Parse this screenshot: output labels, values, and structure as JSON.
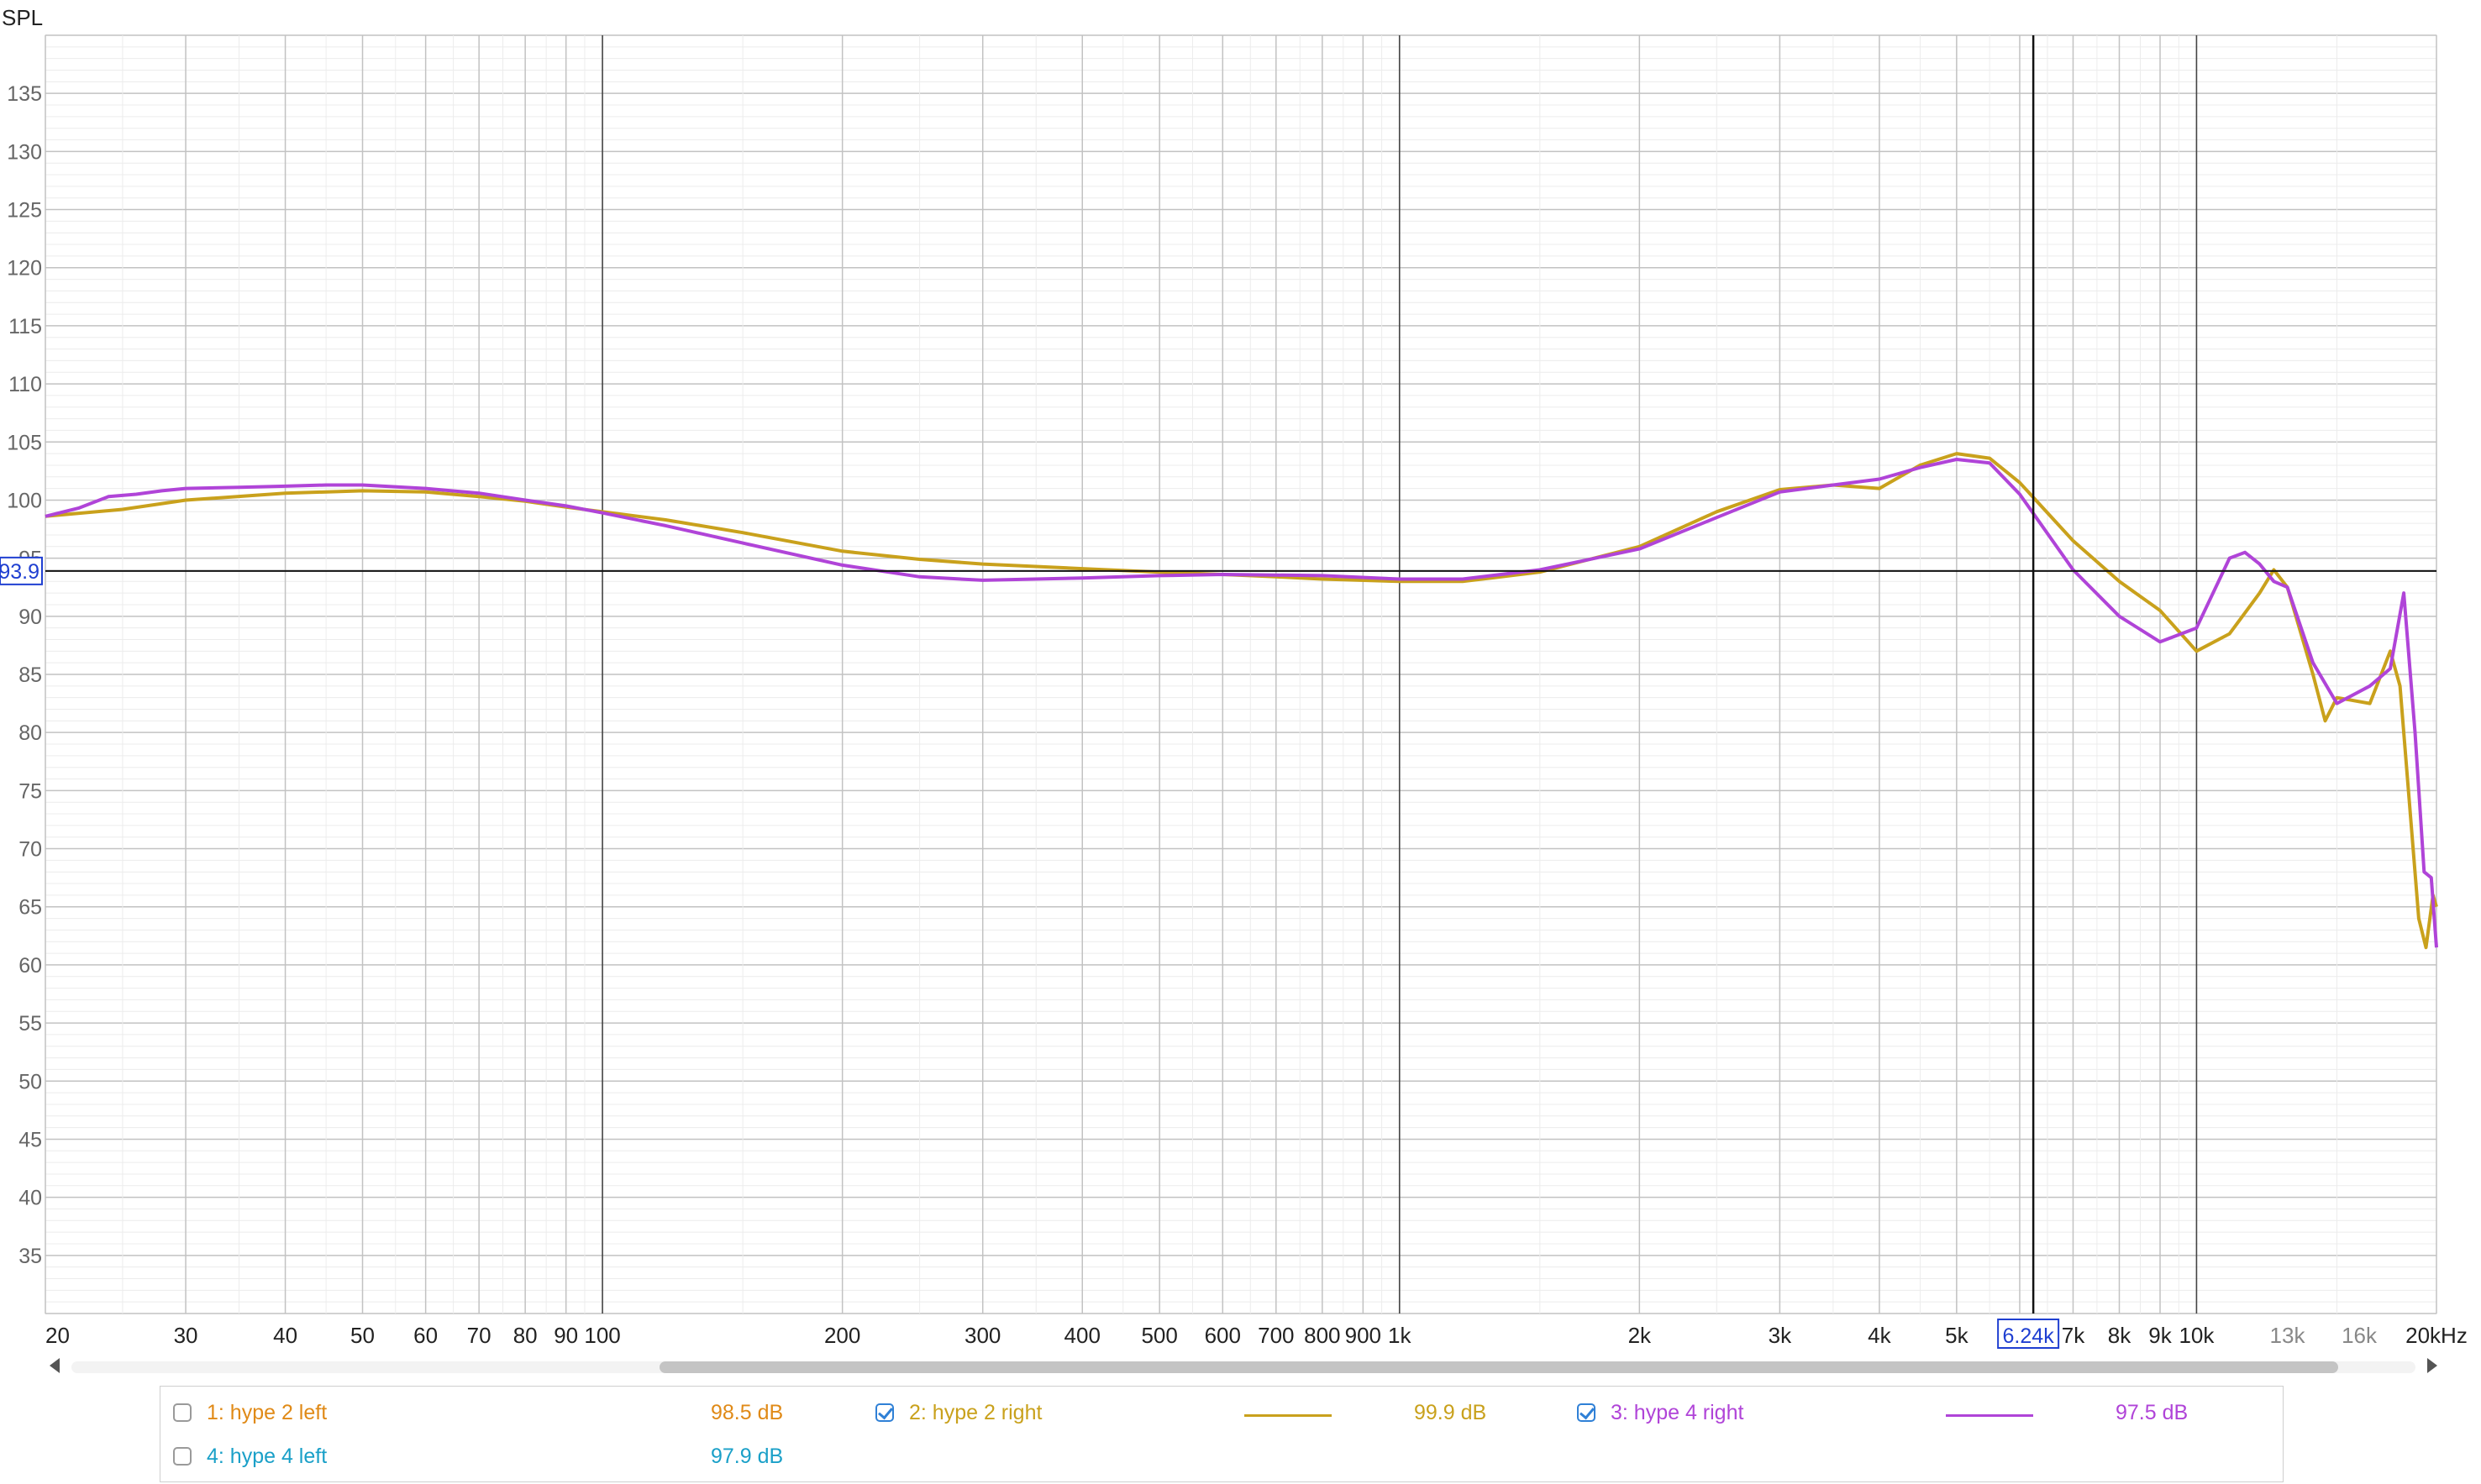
{
  "chart_data": {
    "type": "line",
    "title": "",
    "ylabel": "SPL",
    "xlabel": "",
    "x_scale": "log",
    "xlim": [
      20,
      20000
    ],
    "ylim": [
      30,
      140
    ],
    "grid": true,
    "x_tick_labels": [
      {
        "f": 20,
        "label": "20"
      },
      {
        "f": 30,
        "label": "30"
      },
      {
        "f": 40,
        "label": "40"
      },
      {
        "f": 50,
        "label": "50"
      },
      {
        "f": 60,
        "label": "60"
      },
      {
        "f": 70,
        "label": "70"
      },
      {
        "f": 80,
        "label": "80"
      },
      {
        "f": 90,
        "label": "90"
      },
      {
        "f": 100,
        "label": "100"
      },
      {
        "f": 200,
        "label": "200"
      },
      {
        "f": 300,
        "label": "300"
      },
      {
        "f": 400,
        "label": "400"
      },
      {
        "f": 500,
        "label": "500"
      },
      {
        "f": 600,
        "label": "600"
      },
      {
        "f": 700,
        "label": "700"
      },
      {
        "f": 800,
        "label": "800"
      },
      {
        "f": 900,
        "label": "900"
      },
      {
        "f": 1000,
        "label": "1k"
      },
      {
        "f": 2000,
        "label": "2k"
      },
      {
        "f": 3000,
        "label": "3k"
      },
      {
        "f": 4000,
        "label": "4k"
      },
      {
        "f": 5000,
        "label": "5k"
      },
      {
        "f": 7000,
        "label": "7k"
      },
      {
        "f": 8000,
        "label": "8k"
      },
      {
        "f": 9000,
        "label": "9k"
      },
      {
        "f": 10000,
        "label": "10k"
      },
      {
        "f": 13000,
        "label": "13k",
        "faded": true
      },
      {
        "f": 16000,
        "label": "16k",
        "faded": true
      },
      {
        "f": 20000,
        "label": "20kHz"
      }
    ],
    "y_ticks": [
      35,
      40,
      45,
      50,
      55,
      60,
      65,
      70,
      75,
      80,
      85,
      90,
      95,
      100,
      105,
      110,
      115,
      120,
      125,
      130,
      135
    ],
    "cursor": {
      "freq_label": "6.24k",
      "freq": 6240,
      "level_label": "93.9",
      "level": 93.9
    },
    "series": [
      {
        "name": "2: hype 2 right",
        "color": "#c9a11c",
        "points": [
          [
            20,
            98.6
          ],
          [
            25,
            99.2
          ],
          [
            30,
            100.0
          ],
          [
            40,
            100.6
          ],
          [
            50,
            100.8
          ],
          [
            60,
            100.7
          ],
          [
            70,
            100.3
          ],
          [
            80,
            99.9
          ],
          [
            90,
            99.4
          ],
          [
            100,
            99.0
          ],
          [
            120,
            98.3
          ],
          [
            150,
            97.2
          ],
          [
            200,
            95.6
          ],
          [
            250,
            94.9
          ],
          [
            300,
            94.5
          ],
          [
            400,
            94.1
          ],
          [
            500,
            93.8
          ],
          [
            600,
            93.6
          ],
          [
            700,
            93.4
          ],
          [
            800,
            93.2
          ],
          [
            1000,
            93.0
          ],
          [
            1200,
            93.0
          ],
          [
            1500,
            93.8
          ],
          [
            2000,
            96.0
          ],
          [
            2500,
            99.0
          ],
          [
            3000,
            100.9
          ],
          [
            3500,
            101.3
          ],
          [
            4000,
            101.0
          ],
          [
            4500,
            103.0
          ],
          [
            5000,
            104.0
          ],
          [
            5500,
            103.6
          ],
          [
            6000,
            101.5
          ],
          [
            7000,
            96.5
          ],
          [
            8000,
            93.0
          ],
          [
            9000,
            90.5
          ],
          [
            10000,
            87.0
          ],
          [
            11000,
            88.5
          ],
          [
            12000,
            92.0
          ],
          [
            12500,
            94.0
          ],
          [
            13000,
            92.5
          ],
          [
            14000,
            85.0
          ],
          [
            14500,
            81.0
          ],
          [
            15000,
            83.0
          ],
          [
            16500,
            82.5
          ],
          [
            17500,
            87.0
          ],
          [
            18000,
            84.0
          ],
          [
            19000,
            64.0
          ],
          [
            19400,
            61.5
          ],
          [
            19800,
            66.0
          ],
          [
            20000,
            65.0
          ]
        ]
      },
      {
        "name": "3: hype 4 right",
        "color": "#b044d8",
        "points": [
          [
            20,
            98.6
          ],
          [
            22,
            99.3
          ],
          [
            24,
            100.3
          ],
          [
            26,
            100.5
          ],
          [
            28,
            100.8
          ],
          [
            30,
            101.0
          ],
          [
            35,
            101.1
          ],
          [
            40,
            101.2
          ],
          [
            45,
            101.3
          ],
          [
            50,
            101.3
          ],
          [
            60,
            101.0
          ],
          [
            70,
            100.6
          ],
          [
            80,
            100.0
          ],
          [
            90,
            99.5
          ],
          [
            100,
            98.9
          ],
          [
            120,
            97.8
          ],
          [
            150,
            96.3
          ],
          [
            200,
            94.4
          ],
          [
            250,
            93.4
          ],
          [
            300,
            93.1
          ],
          [
            400,
            93.3
          ],
          [
            500,
            93.5
          ],
          [
            600,
            93.6
          ],
          [
            800,
            93.5
          ],
          [
            1000,
            93.2
          ],
          [
            1200,
            93.2
          ],
          [
            1500,
            94.0
          ],
          [
            2000,
            95.8
          ],
          [
            2500,
            98.5
          ],
          [
            3000,
            100.7
          ],
          [
            3500,
            101.3
          ],
          [
            4000,
            101.8
          ],
          [
            4500,
            102.8
          ],
          [
            5000,
            103.5
          ],
          [
            5500,
            103.2
          ],
          [
            6000,
            100.5
          ],
          [
            7000,
            94.0
          ],
          [
            8000,
            90.0
          ],
          [
            9000,
            87.8
          ],
          [
            10000,
            89.0
          ],
          [
            11000,
            95.0
          ],
          [
            11500,
            95.5
          ],
          [
            12000,
            94.5
          ],
          [
            12500,
            93.0
          ],
          [
            13000,
            92.5
          ],
          [
            14000,
            86.0
          ],
          [
            15000,
            82.5
          ],
          [
            16500,
            84.0
          ],
          [
            17500,
            85.5
          ],
          [
            18200,
            92.0
          ],
          [
            18800,
            80.0
          ],
          [
            19300,
            68.0
          ],
          [
            19700,
            67.5
          ],
          [
            20000,
            61.5
          ]
        ]
      }
    ]
  },
  "legend": {
    "items": [
      {
        "label": "1: hype 2 left",
        "value": "98.5 dB",
        "color": "#e08a17",
        "checked": false
      },
      {
        "label": "2: hype 2 right",
        "value": "99.9 dB",
        "color": "#c9a11c",
        "checked": true
      },
      {
        "label": "3: hype 4 right",
        "value": "97.5 dB",
        "color": "#b044d8",
        "checked": true
      },
      {
        "label": "4: hype 4 left",
        "value": "97.9 dB",
        "color": "#1aa0c8",
        "checked": false
      }
    ]
  }
}
